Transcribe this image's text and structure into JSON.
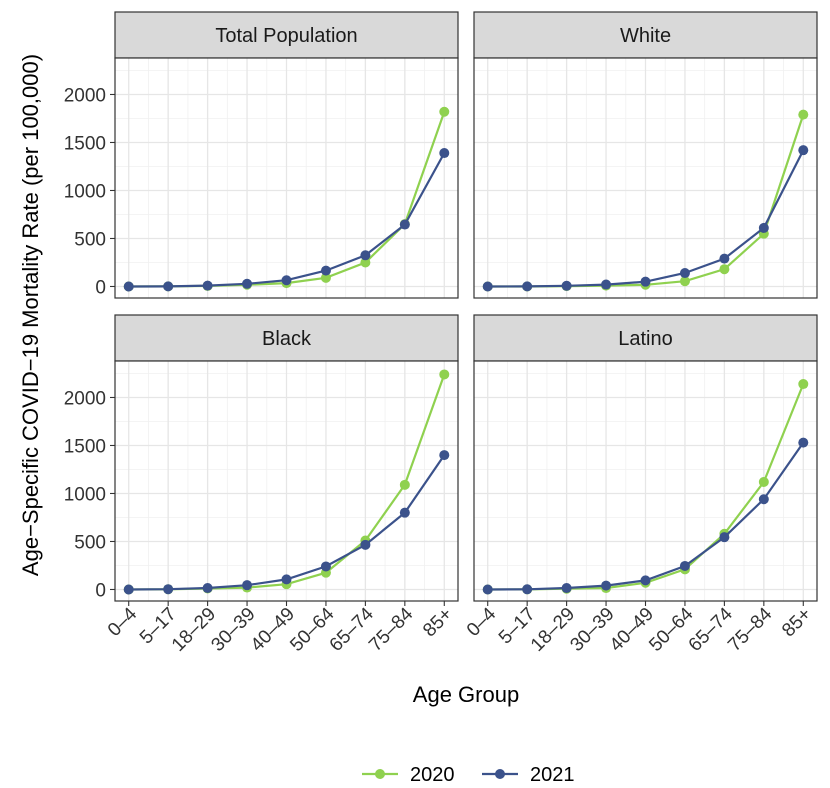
{
  "chart_data": {
    "type": "line",
    "xlabel": "Age Group",
    "ylabel": "Age−Specific COVID−19 Mortality Rate (per 100,000)",
    "categories": [
      "0–4",
      "5–17",
      "18–29",
      "30–39",
      "40–49",
      "50–64",
      "65–74",
      "75–84",
      "85+"
    ],
    "ylim": [
      -120,
      2380
    ],
    "yticks": [
      0,
      500,
      1000,
      1500,
      2000
    ],
    "grid": true,
    "legend_position": "bottom",
    "colors": {
      "2020": "#8fd14f",
      "2021": "#3b528b"
    },
    "legend": [
      "2020",
      "2021"
    ],
    "panels": [
      {
        "title": "Total Population",
        "series": [
          {
            "name": "2020",
            "values": [
              0,
              1,
              6,
              18,
              35,
              90,
              250,
              650,
              1820
            ]
          },
          {
            "name": "2021",
            "values": [
              0,
              1,
              9,
              28,
              65,
              165,
              325,
              645,
              1390
            ]
          }
        ]
      },
      {
        "title": "White",
        "series": [
          {
            "name": "2020",
            "values": [
              0,
              0,
              4,
              9,
              18,
              55,
              180,
              550,
              1790
            ]
          },
          {
            "name": "2021",
            "values": [
              0,
              1,
              7,
              20,
              50,
              140,
              290,
              610,
              1420
            ]
          }
        ]
      },
      {
        "title": "Black",
        "series": [
          {
            "name": "2020",
            "values": [
              0,
              2,
              10,
              20,
              55,
              175,
              510,
              1090,
              2240
            ]
          },
          {
            "name": "2021",
            "values": [
              0,
              3,
              15,
              45,
              105,
              240,
              465,
              800,
              1400
            ]
          }
        ]
      },
      {
        "title": "Latino",
        "series": [
          {
            "name": "2020",
            "values": [
              0,
              1,
              8,
              15,
              70,
              210,
              580,
              1120,
              2140
            ]
          },
          {
            "name": "2021",
            "values": [
              0,
              2,
              15,
              40,
              95,
              245,
              545,
              940,
              1530
            ]
          }
        ]
      }
    ]
  }
}
